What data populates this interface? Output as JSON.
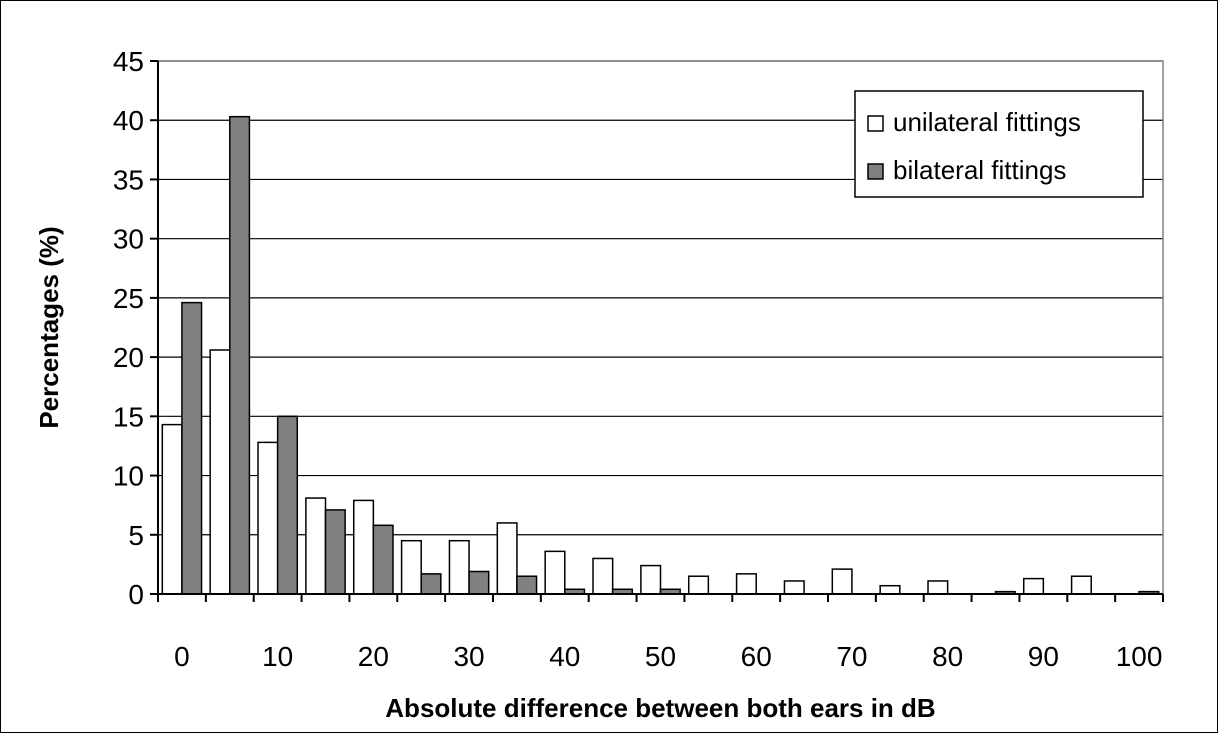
{
  "chart_data": {
    "type": "bar",
    "title": "",
    "xlabel": "Absolute difference between both ears in dB",
    "ylabel": "Percentages (%)",
    "ylim": [
      0,
      45
    ],
    "yticks": [
      0,
      5,
      10,
      15,
      20,
      25,
      30,
      35,
      40,
      45
    ],
    "xticks": [
      0,
      10,
      20,
      30,
      40,
      50,
      60,
      70,
      80,
      90,
      100
    ],
    "categories": [
      0,
      5,
      10,
      15,
      20,
      25,
      30,
      35,
      40,
      45,
      50,
      55,
      60,
      65,
      70,
      75,
      80,
      85,
      90,
      95,
      100
    ],
    "series": [
      {
        "name": "unilateral fittings",
        "color": "#ffffff",
        "values": [
          14.3,
          20.6,
          12.8,
          8.1,
          7.9,
          4.5,
          4.5,
          6.0,
          3.6,
          3.0,
          2.4,
          1.5,
          1.7,
          1.1,
          2.1,
          0.7,
          1.1,
          0,
          1.3,
          1.5,
          0
        ]
      },
      {
        "name": "bilateral fittings",
        "color": "#808080",
        "values": [
          24.6,
          40.3,
          15.0,
          7.1,
          5.8,
          1.7,
          1.9,
          1.5,
          0.4,
          0.4,
          0.4,
          0,
          0,
          0,
          0,
          0,
          0,
          0.2,
          0,
          0,
          0.2
        ]
      }
    ],
    "grid": true,
    "legend_position": "top-right"
  }
}
